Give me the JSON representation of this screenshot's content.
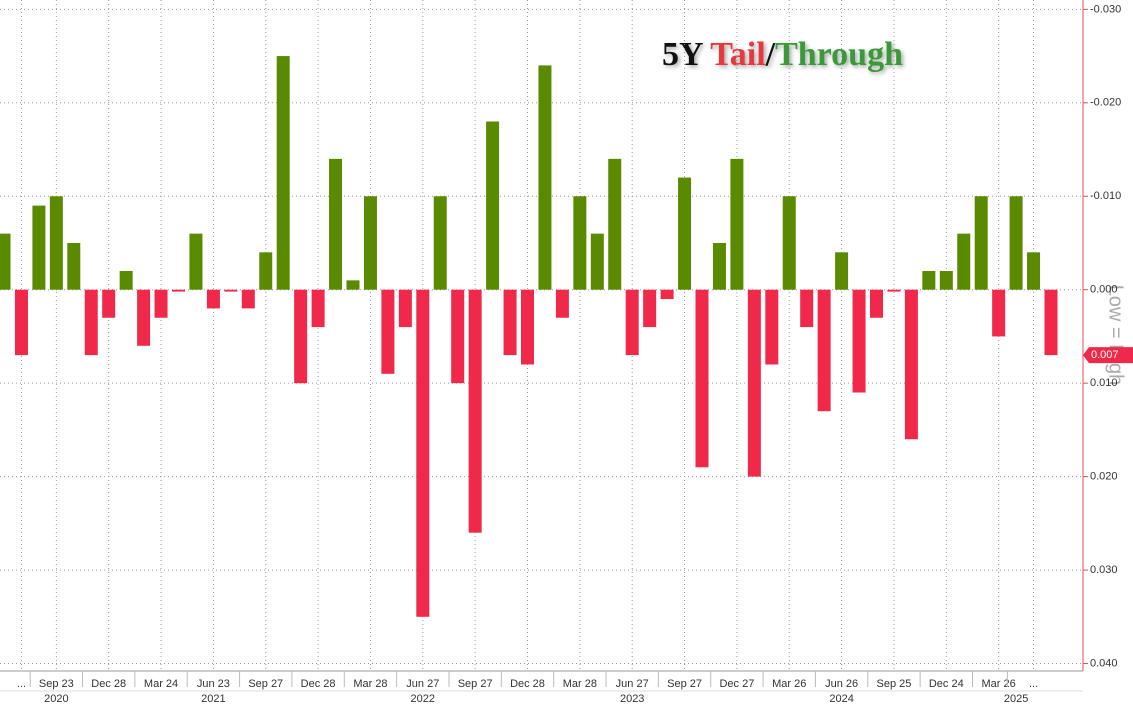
{
  "chart_data": {
    "type": "bar",
    "title_parts": [
      {
        "text": "5Y ",
        "color": "#111111"
      },
      {
        "text": "Tail",
        "color": "#e8383f"
      },
      {
        "text": "/",
        "color": "#111111"
      },
      {
        "text": "Through",
        "color": "#3a9a3a"
      }
    ],
    "y_axis_label": "Low = High",
    "categories": [
      null,
      "...",
      null,
      "Sep 23",
      null,
      null,
      "Dec 28",
      null,
      null,
      "Mar 24",
      null,
      null,
      "Jun 23",
      null,
      null,
      "Sep 27",
      null,
      null,
      "Dec 28",
      null,
      null,
      "Mar 28",
      null,
      null,
      "Jun 27",
      null,
      null,
      "Sep 27",
      null,
      null,
      "Dec 28",
      null,
      null,
      "Mar 28",
      null,
      null,
      "Jun 27",
      null,
      null,
      "Sep 27",
      null,
      null,
      "Dec 27",
      null,
      null,
      "Mar 26",
      null,
      null,
      "Jun 26",
      null,
      null,
      "Sep 25",
      null,
      null,
      "Dec 24",
      null,
      null,
      "Mar 26",
      null,
      "...",
      null
    ],
    "x_group_labels": [
      null,
      null,
      null,
      "2020",
      null,
      null,
      null,
      null,
      null,
      null,
      null,
      null,
      "2021",
      null,
      null,
      null,
      null,
      null,
      null,
      null,
      null,
      null,
      null,
      null,
      "2022",
      null,
      null,
      null,
      null,
      null,
      null,
      null,
      null,
      null,
      null,
      null,
      "2023",
      null,
      null,
      null,
      null,
      null,
      null,
      null,
      null,
      null,
      null,
      null,
      "2024",
      null,
      null,
      null,
      null,
      null,
      null,
      null,
      null,
      null,
      "2025",
      null,
      null,
      null,
      null
    ],
    "values": [
      -0.006,
      0.007,
      -0.009,
      -0.01,
      -0.005,
      0.007,
      0.003,
      -0.002,
      0.006,
      0.003,
      0.0002,
      -0.006,
      0.002,
      0.0002,
      0.002,
      -0.004,
      -0.025,
      0.01,
      0.004,
      -0.014,
      -0.001,
      -0.01,
      0.009,
      0.004,
      0.035,
      -0.01,
      0.01,
      0.026,
      -0.018,
      0.007,
      0.008,
      -0.024,
      0.003,
      -0.01,
      -0.006,
      -0.014,
      0.007,
      0.004,
      0.001,
      -0.012,
      0.019,
      -0.005,
      -0.014,
      0.02,
      0.008,
      -0.01,
      0.004,
      0.013,
      -0.004,
      0.011,
      0.003,
      0.0002,
      0.016,
      -0.002,
      -0.002,
      -0.006,
      -0.01,
      0.005,
      -0.01,
      -0.004,
      0.007
    ],
    "positive_color": "#f0284a",
    "negative_color": "#5a8a00",
    "y_inverted": true,
    "ylim": [
      -0.031,
      0.0408
    ],
    "yticks": [
      {
        "value": -0.03,
        "label": "-0.030"
      },
      {
        "value": -0.02,
        "label": "-0.020"
      },
      {
        "value": -0.01,
        "label": "-0.010"
      },
      {
        "value": 0,
        "label": "0.000"
      },
      {
        "value": 0.01,
        "label": "0.010"
      },
      {
        "value": 0.02,
        "label": "0.020"
      },
      {
        "value": 0.03,
        "label": "0.030"
      },
      {
        "value": 0.04,
        "label": "0.040"
      }
    ],
    "grid": true
  }
}
